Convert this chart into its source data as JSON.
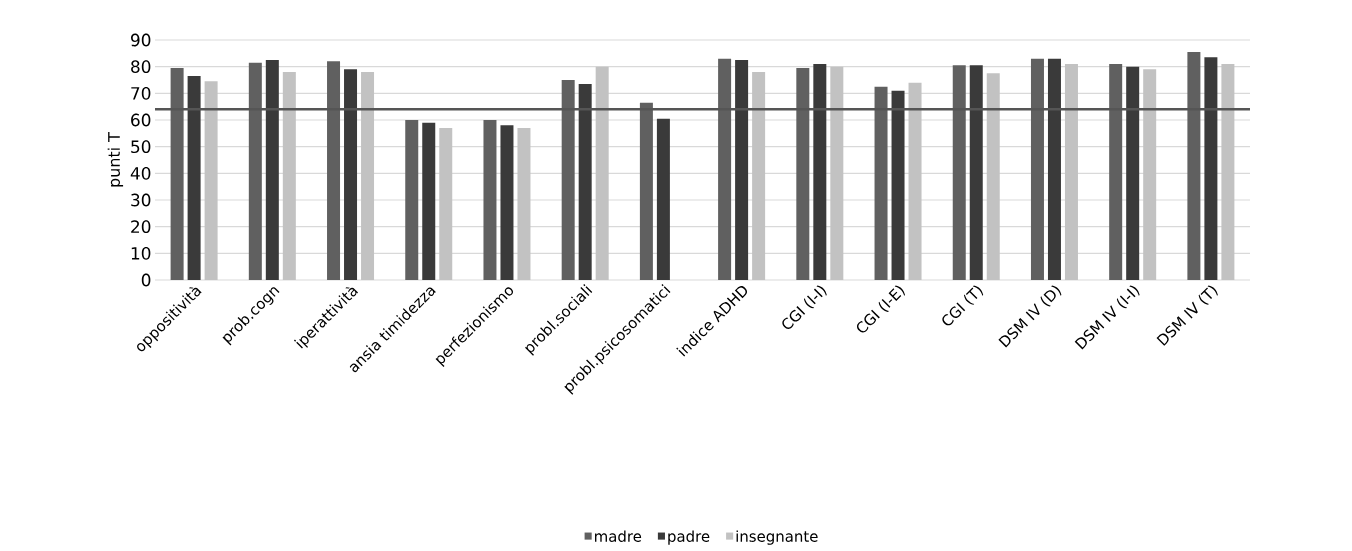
{
  "chart_data": {
    "type": "bar",
    "ylabel": "punti T",
    "categories": [
      "oppositività",
      "prob.cogn",
      "iperattività",
      "ansia timidezza",
      "perfezionismo",
      "probl.sociali",
      "probl.psicosomatici",
      "indice ADHD",
      "CGI (I-I)",
      "CGI (I-E)",
      "CGI (T)",
      "DSM IV (D)",
      "DSM IV (I-I)",
      "DSM IV (T)"
    ],
    "series": [
      {
        "name": "madre",
        "color": "#606060",
        "values": [
          79.5,
          81.5,
          82,
          60,
          60,
          75,
          66.5,
          83,
          79.5,
          72.5,
          80.5,
          83,
          81,
          85.5
        ]
      },
      {
        "name": "padre",
        "color": "#3a3a3a",
        "values": [
          76.5,
          82.5,
          79,
          59,
          58,
          73.5,
          60.5,
          82.5,
          81,
          71,
          80.5,
          83,
          80,
          83.5
        ]
      },
      {
        "name": "insegnante",
        "color": "#c2c2c2",
        "values": [
          74.5,
          78,
          78,
          57,
          57,
          80,
          null,
          78,
          80,
          74,
          77.5,
          81,
          79,
          81
        ]
      }
    ],
    "ylim": [
      0,
      90
    ],
    "yticks": [
      0,
      10,
      20,
      30,
      40,
      50,
      60,
      70,
      80,
      90
    ],
    "ref_lines": [
      {
        "axis": "y",
        "value": 64,
        "color": "#555555"
      }
    ],
    "grid": "y",
    "legend": "bottom"
  }
}
